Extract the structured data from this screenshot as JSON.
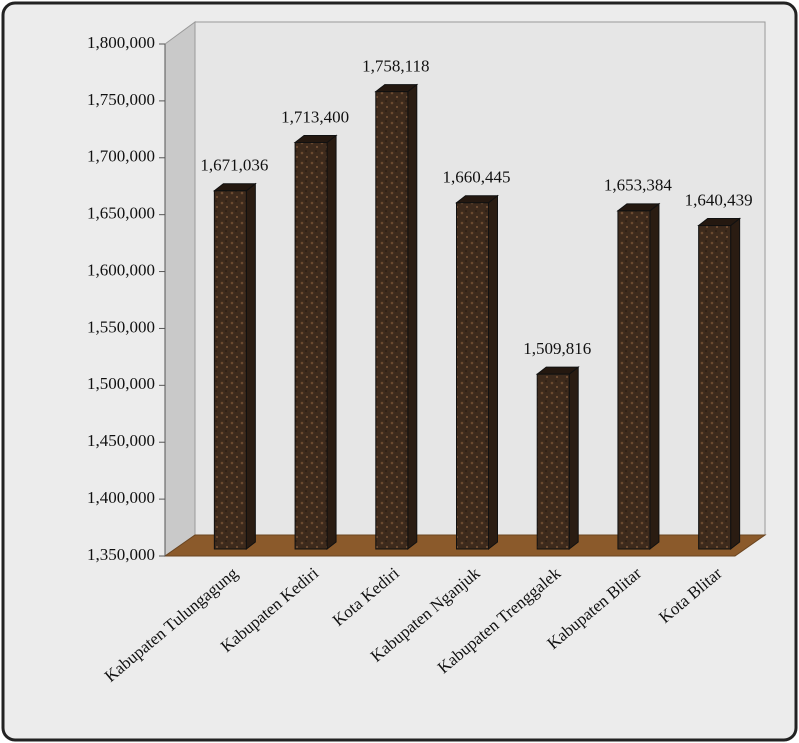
{
  "chart_data": {
    "type": "bar",
    "categories": [
      "Kabupaten Tulungagung",
      "Kabupaten Kediri",
      "Kota Kediri",
      "Kabupaten Nganjuk",
      "Kabupaten Trenggalek",
      "Kabupaten Blitar",
      "Kota Blitar"
    ],
    "values": [
      1671036,
      1713400,
      1758118,
      1660445,
      1509816,
      1653384,
      1640439
    ],
    "value_labels": [
      "1,671,036",
      "1,713,400",
      "1,758,118",
      "1,660,445",
      "1,509,816",
      "1,653,384",
      "1,640,439"
    ],
    "color": "#3d2a1c",
    "ylim": [
      1350000,
      1800000
    ],
    "yticks": [
      {
        "value": 1350000,
        "label": "1,350,000"
      },
      {
        "value": 1400000,
        "label": "1,400,000"
      },
      {
        "value": 1450000,
        "label": "1,450,000"
      },
      {
        "value": 1500000,
        "label": "1,500,000"
      },
      {
        "value": 1550000,
        "label": "1,550,000"
      },
      {
        "value": 1600000,
        "label": "1,600,000"
      },
      {
        "value": 1650000,
        "label": "1,650,000"
      },
      {
        "value": 1700000,
        "label": "1,700,000"
      },
      {
        "value": 1750000,
        "label": "1,750,000"
      },
      {
        "value": 1800000,
        "label": "1,800,000"
      }
    ]
  }
}
